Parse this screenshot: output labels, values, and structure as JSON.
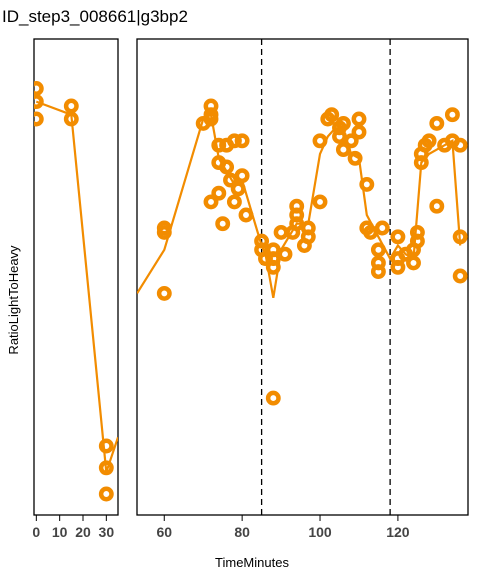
{
  "chart_data": {
    "type": "scatter",
    "title": "ID_step3_008661|g3bp2",
    "xlabel": "TimeMinutes",
    "ylabel": "RatioLightToHeavy",
    "color": "#f28c00",
    "y_tick_labels": "none",
    "grid": false,
    "vlines": [
      85,
      118
    ],
    "panels": [
      {
        "name": "left",
        "xlim": [
          -1,
          35
        ],
        "xticks": [
          0,
          10,
          20,
          30
        ],
        "tick_labels": [
          "0",
          "10",
          "20",
          "30"
        ],
        "points": [
          {
            "x": 0,
            "y": 0.93
          },
          {
            "x": 0,
            "y": 0.9
          },
          {
            "x": 0,
            "y": 0.86
          },
          {
            "x": 15,
            "y": 0.89
          },
          {
            "x": 15,
            "y": 0.86
          },
          {
            "x": 30,
            "y": 0.11
          },
          {
            "x": 30,
            "y": 0.06
          },
          {
            "x": 30,
            "y": 0.0
          }
        ],
        "line": [
          {
            "x": 0,
            "y": 0.9
          },
          {
            "x": 15,
            "y": 0.87
          },
          {
            "x": 30,
            "y": 0.05
          },
          {
            "x": 35,
            "y": 0.13
          }
        ]
      },
      {
        "name": "right",
        "xlim": [
          53,
          138
        ],
        "xticks": [
          60,
          80,
          100,
          120
        ],
        "tick_labels": [
          "60",
          "80",
          "100",
          "120"
        ],
        "points": [
          {
            "x": 60,
            "y": 0.61
          },
          {
            "x": 60,
            "y": 0.6
          },
          {
            "x": 60,
            "y": 0.46
          },
          {
            "x": 70,
            "y": 0.85
          },
          {
            "x": 72,
            "y": 0.89
          },
          {
            "x": 72,
            "y": 0.87
          },
          {
            "x": 72,
            "y": 0.86
          },
          {
            "x": 74,
            "y": 0.8
          },
          {
            "x": 74,
            "y": 0.76
          },
          {
            "x": 74,
            "y": 0.69
          },
          {
            "x": 75,
            "y": 0.62
          },
          {
            "x": 76,
            "y": 0.8
          },
          {
            "x": 76,
            "y": 0.75
          },
          {
            "x": 77,
            "y": 0.72
          },
          {
            "x": 78,
            "y": 0.81
          },
          {
            "x": 78,
            "y": 0.67
          },
          {
            "x": 79,
            "y": 0.7
          },
          {
            "x": 72,
            "y": 0.67
          },
          {
            "x": 80,
            "y": 0.81
          },
          {
            "x": 80,
            "y": 0.73
          },
          {
            "x": 81,
            "y": 0.64
          },
          {
            "x": 85,
            "y": 0.58
          },
          {
            "x": 85,
            "y": 0.56
          },
          {
            "x": 86,
            "y": 0.54
          },
          {
            "x": 88,
            "y": 0.56
          },
          {
            "x": 88,
            "y": 0.54
          },
          {
            "x": 88,
            "y": 0.52
          },
          {
            "x": 88,
            "y": 0.22
          },
          {
            "x": 90,
            "y": 0.6
          },
          {
            "x": 91,
            "y": 0.55
          },
          {
            "x": 93,
            "y": 0.6
          },
          {
            "x": 94,
            "y": 0.66
          },
          {
            "x": 94,
            "y": 0.64
          },
          {
            "x": 94,
            "y": 0.62
          },
          {
            "x": 96,
            "y": 0.57
          },
          {
            "x": 97,
            "y": 0.59
          },
          {
            "x": 97,
            "y": 0.61
          },
          {
            "x": 100,
            "y": 0.67
          },
          {
            "x": 100,
            "y": 0.81
          },
          {
            "x": 102,
            "y": 0.86
          },
          {
            "x": 103,
            "y": 0.87
          },
          {
            "x": 105,
            "y": 0.84
          },
          {
            "x": 105,
            "y": 0.82
          },
          {
            "x": 106,
            "y": 0.85
          },
          {
            "x": 106,
            "y": 0.79
          },
          {
            "x": 108,
            "y": 0.81
          },
          {
            "x": 109,
            "y": 0.77
          },
          {
            "x": 110,
            "y": 0.86
          },
          {
            "x": 110,
            "y": 0.83
          },
          {
            "x": 112,
            "y": 0.71
          },
          {
            "x": 112,
            "y": 0.61
          },
          {
            "x": 113,
            "y": 0.6
          },
          {
            "x": 115,
            "y": 0.56
          },
          {
            "x": 115,
            "y": 0.53
          },
          {
            "x": 115,
            "y": 0.51
          },
          {
            "x": 116,
            "y": 0.61
          },
          {
            "x": 120,
            "y": 0.59
          },
          {
            "x": 120,
            "y": 0.54
          },
          {
            "x": 120,
            "y": 0.52
          },
          {
            "x": 122,
            "y": 0.55
          },
          {
            "x": 124,
            "y": 0.53
          },
          {
            "x": 124,
            "y": 0.56
          },
          {
            "x": 125,
            "y": 0.58
          },
          {
            "x": 125,
            "y": 0.6
          },
          {
            "x": 126,
            "y": 0.78
          },
          {
            "x": 126,
            "y": 0.76
          },
          {
            "x": 127,
            "y": 0.8
          },
          {
            "x": 128,
            "y": 0.81
          },
          {
            "x": 130,
            "y": 0.85
          },
          {
            "x": 130,
            "y": 0.66
          },
          {
            "x": 132,
            "y": 0.8
          },
          {
            "x": 134,
            "y": 0.81
          },
          {
            "x": 134,
            "y": 0.87
          },
          {
            "x": 136,
            "y": 0.8
          },
          {
            "x": 136,
            "y": 0.59
          },
          {
            "x": 136,
            "y": 0.5
          }
        ],
        "line": [
          {
            "x": 53,
            "y": 0.46
          },
          {
            "x": 60,
            "y": 0.56
          },
          {
            "x": 70,
            "y": 0.86
          },
          {
            "x": 72,
            "y": 0.87
          },
          {
            "x": 74,
            "y": 0.77
          },
          {
            "x": 76,
            "y": 0.74
          },
          {
            "x": 78,
            "y": 0.71
          },
          {
            "x": 80,
            "y": 0.72
          },
          {
            "x": 85,
            "y": 0.57
          },
          {
            "x": 86,
            "y": 0.55
          },
          {
            "x": 88,
            "y": 0.45
          },
          {
            "x": 90,
            "y": 0.56
          },
          {
            "x": 94,
            "y": 0.62
          },
          {
            "x": 97,
            "y": 0.62
          },
          {
            "x": 100,
            "y": 0.78
          },
          {
            "x": 102,
            "y": 0.82
          },
          {
            "x": 104,
            "y": 0.84
          },
          {
            "x": 106,
            "y": 0.83
          },
          {
            "x": 108,
            "y": 0.78
          },
          {
            "x": 110,
            "y": 0.77
          },
          {
            "x": 112,
            "y": 0.64
          },
          {
            "x": 115,
            "y": 0.59
          },
          {
            "x": 118,
            "y": 0.54
          },
          {
            "x": 120,
            "y": 0.57
          },
          {
            "x": 122,
            "y": 0.55
          },
          {
            "x": 124,
            "y": 0.54
          },
          {
            "x": 126,
            "y": 0.76
          },
          {
            "x": 128,
            "y": 0.78
          },
          {
            "x": 130,
            "y": 0.79
          },
          {
            "x": 132,
            "y": 0.8
          },
          {
            "x": 134,
            "y": 0.81
          },
          {
            "x": 136,
            "y": 0.57
          }
        ]
      }
    ]
  }
}
